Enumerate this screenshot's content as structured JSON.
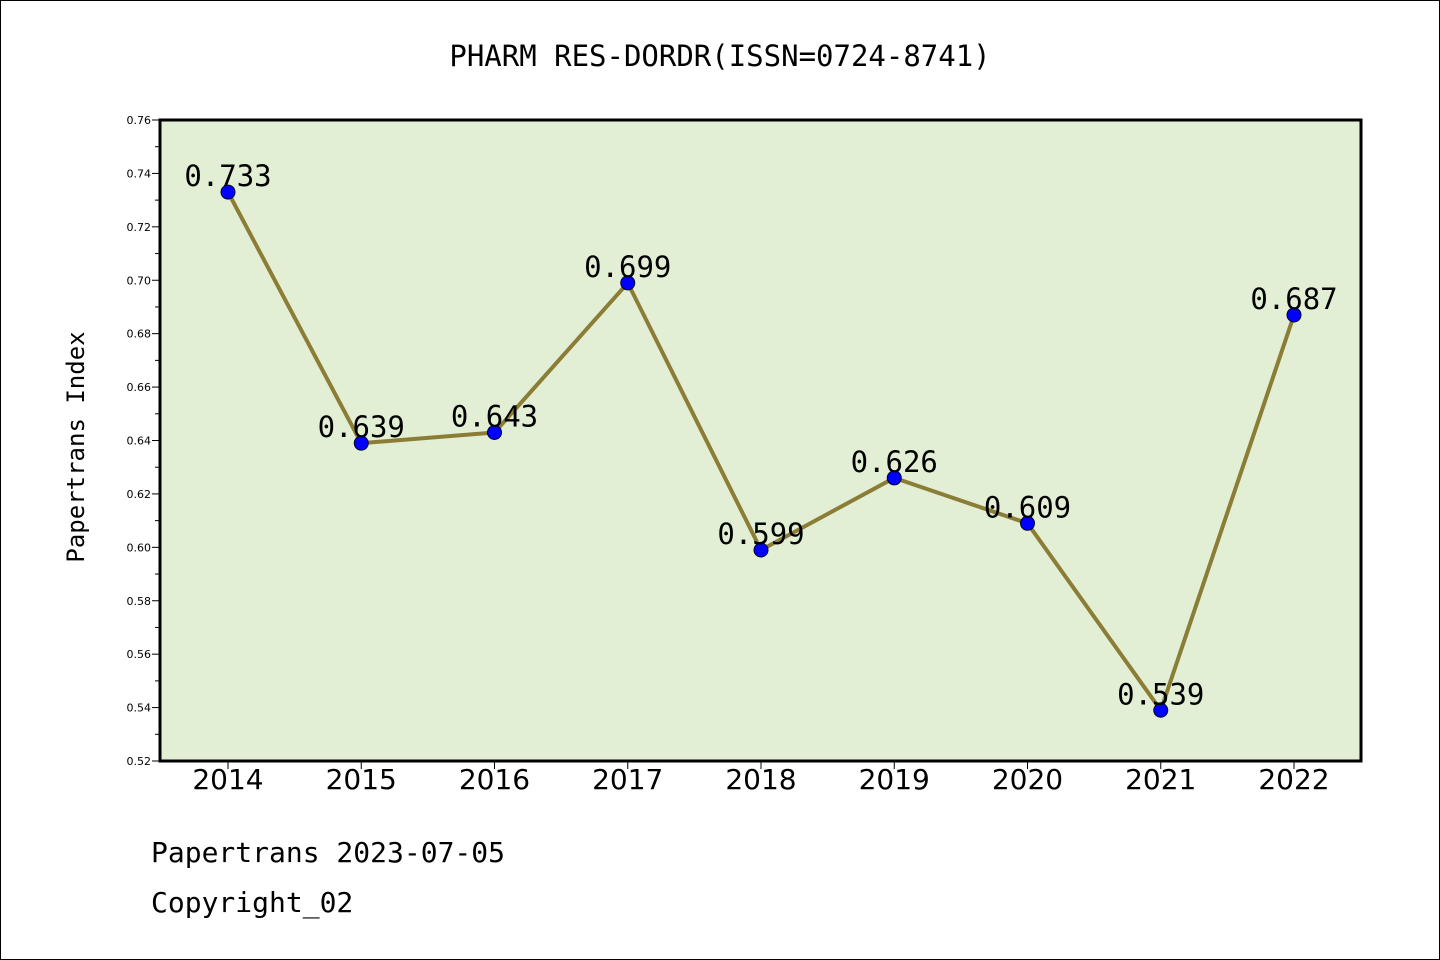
{
  "chart_data": {
    "type": "line",
    "title": "PHARM RES-DORDR(ISSN=0724-8741)",
    "xlabel": "",
    "ylabel": "Papertrans Index",
    "categories": [
      "2014",
      "2015",
      "2016",
      "2017",
      "2018",
      "2019",
      "2020",
      "2021",
      "2022"
    ],
    "values": [
      0.733,
      0.639,
      0.643,
      0.699,
      0.599,
      0.626,
      0.609,
      0.539,
      0.687
    ],
    "data_labels": [
      "0.733",
      "0.639",
      "0.643",
      "0.699",
      "0.599",
      "0.626",
      "0.609",
      "0.539",
      "0.687"
    ],
    "ylim": [
      0.52,
      0.76
    ],
    "yticks": [
      "0.52",
      "0.54",
      "0.56",
      "0.58",
      "0.60",
      "0.62",
      "0.64",
      "0.66",
      "0.68",
      "0.70",
      "0.72",
      "0.74",
      "0.76"
    ],
    "grid": false,
    "colors": {
      "plot_background": "#e2efd5",
      "line": "#8b7d35",
      "marker": "#0000ff"
    }
  },
  "footer": {
    "line1": "Papertrans 2023-07-05",
    "line2": "Copyright_02"
  }
}
